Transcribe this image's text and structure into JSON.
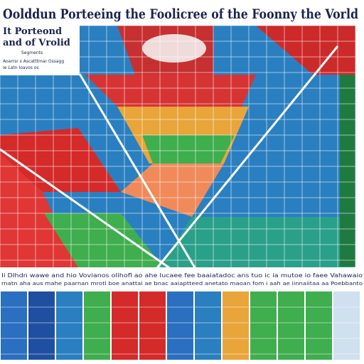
{
  "header": {
    "title": "Oolddun Porteeing the Foolicree of the Foonny the Vorld",
    "subtitle_lines": [
      "It Porteond",
      "and of Vrolid"
    ]
  },
  "panel": {
    "label": "Segments",
    "lines": [
      "Aoarrsr s Ascatttmar Ossagg",
      "Ie Latn Ioavos os"
    ]
  },
  "banner": {
    "lines": [
      "Ii Dlhdn wawe and hio Vovianos olihofl ao ahe Iucaee fee baaiatadoc ans tuo ic ia mutoe io faee Vahawaio",
      "rnatn aha aus mahe paarnan mrotl boe anattai ae bnac aaiaptteed anetato maoan fom i aah ae iinnaiitaa aa Poebbanto"
    ]
  }
}
